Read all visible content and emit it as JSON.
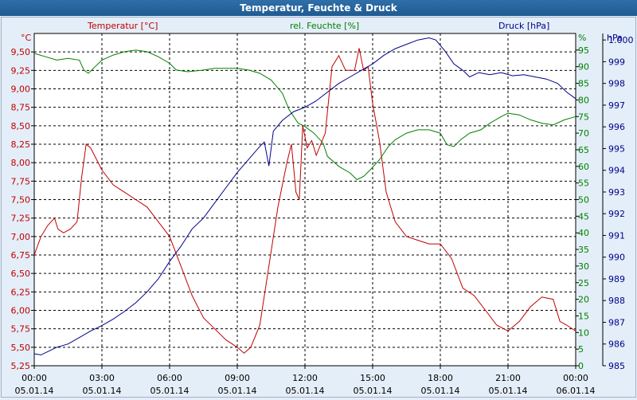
{
  "window": {
    "title": "Temperatur, Feuchte & Druck"
  },
  "chart_data": {
    "type": "line",
    "grid": true,
    "x_axis": {
      "ticks": [
        {
          "time": "00:00",
          "date": "05.01.14"
        },
        {
          "time": "03:00",
          "date": "05.01.14"
        },
        {
          "time": "06:00",
          "date": "05.01.14"
        },
        {
          "time": "09:00",
          "date": "05.01.14"
        },
        {
          "time": "12:00",
          "date": "05.01.14"
        },
        {
          "time": "15:00",
          "date": "05.01.14"
        },
        {
          "time": "18:00",
          "date": "05.01.14"
        },
        {
          "time": "21:00",
          "date": "05.01.14"
        },
        {
          "time": "00:00",
          "date": "06.01.14"
        }
      ],
      "range_hours": [
        0,
        24
      ]
    },
    "y_left": {
      "label": "Temperatur [°C]",
      "unit": "°C",
      "range": [
        5.25,
        9.75
      ],
      "ticks": [
        "5,25",
        "5,50",
        "5,75",
        "6,00",
        "6,25",
        "6,50",
        "6,75",
        "7,00",
        "7,25",
        "7,50",
        "7,75",
        "8,00",
        "8,25",
        "8,50",
        "8,75",
        "9,00",
        "9,25",
        "9,50"
      ],
      "color": "#c00000"
    },
    "y_middle": {
      "label": "rel. Feuchte [%]",
      "unit": "%",
      "range": [
        0,
        100
      ],
      "ticks": [
        "0",
        "5",
        "10",
        "15",
        "20",
        "25",
        "30",
        "35",
        "40",
        "45",
        "50",
        "55",
        "60",
        "65",
        "70",
        "75",
        "80",
        "85",
        "90",
        "95"
      ],
      "color": "#008000"
    },
    "y_right": {
      "label": "Druck [hPa]",
      "unit": "hPa",
      "range": [
        985,
        1000.3
      ],
      "ticks": [
        "985",
        "986",
        "987",
        "988",
        "989",
        "990",
        "991",
        "992",
        "993",
        "994",
        "995",
        "996",
        "997",
        "998",
        "999",
        "1.000"
      ],
      "color": "#00008b"
    },
    "series": [
      {
        "name": "Temperatur [°C]",
        "axis": "left",
        "color": "#c00000",
        "points": [
          [
            0.0,
            6.75
          ],
          [
            0.3,
            7.0
          ],
          [
            0.6,
            7.15
          ],
          [
            0.9,
            7.25
          ],
          [
            1.05,
            7.1
          ],
          [
            1.3,
            7.05
          ],
          [
            1.6,
            7.1
          ],
          [
            1.9,
            7.2
          ],
          [
            2.1,
            7.8
          ],
          [
            2.3,
            8.25
          ],
          [
            2.5,
            8.2
          ],
          [
            3.0,
            7.9
          ],
          [
            3.5,
            7.7
          ],
          [
            4.0,
            7.6
          ],
          [
            4.5,
            7.5
          ],
          [
            5.0,
            7.4
          ],
          [
            5.5,
            7.2
          ],
          [
            6.0,
            7.0
          ],
          [
            6.5,
            6.6
          ],
          [
            7.0,
            6.2
          ],
          [
            7.5,
            5.9
          ],
          [
            8.0,
            5.75
          ],
          [
            8.5,
            5.6
          ],
          [
            9.0,
            5.5
          ],
          [
            9.3,
            5.42
          ],
          [
            9.6,
            5.5
          ],
          [
            10.0,
            5.8
          ],
          [
            10.4,
            6.6
          ],
          [
            10.8,
            7.4
          ],
          [
            11.2,
            8.0
          ],
          [
            11.4,
            8.25
          ],
          [
            11.6,
            7.6
          ],
          [
            11.75,
            7.5
          ],
          [
            11.9,
            8.5
          ],
          [
            12.1,
            8.2
          ],
          [
            12.3,
            8.3
          ],
          [
            12.5,
            8.1
          ],
          [
            12.7,
            8.25
          ],
          [
            12.9,
            8.4
          ],
          [
            13.2,
            9.3
          ],
          [
            13.5,
            9.45
          ],
          [
            13.8,
            9.25
          ],
          [
            14.2,
            9.25
          ],
          [
            14.4,
            9.55
          ],
          [
            14.6,
            9.25
          ],
          [
            14.8,
            9.3
          ],
          [
            15.0,
            8.8
          ],
          [
            15.3,
            8.3
          ],
          [
            15.6,
            7.6
          ],
          [
            16.0,
            7.2
          ],
          [
            16.5,
            7.0
          ],
          [
            17.0,
            6.95
          ],
          [
            17.5,
            6.9
          ],
          [
            18.0,
            6.9
          ],
          [
            18.5,
            6.7
          ],
          [
            19.0,
            6.3
          ],
          [
            19.5,
            6.2
          ],
          [
            20.0,
            6.0
          ],
          [
            20.5,
            5.8
          ],
          [
            21.0,
            5.72
          ],
          [
            21.5,
            5.85
          ],
          [
            22.0,
            6.05
          ],
          [
            22.5,
            6.18
          ],
          [
            23.0,
            6.15
          ],
          [
            23.3,
            5.85
          ],
          [
            23.6,
            5.8
          ],
          [
            24.0,
            5.72
          ]
        ]
      },
      {
        "name": "rel. Feuchte [%]",
        "axis": "middle",
        "color": "#008000",
        "points": [
          [
            0.0,
            94
          ],
          [
            0.5,
            93
          ],
          [
            1.0,
            92
          ],
          [
            1.5,
            92.5
          ],
          [
            2.0,
            92
          ],
          [
            2.2,
            89
          ],
          [
            2.4,
            88
          ],
          [
            2.7,
            90
          ],
          [
            3.0,
            92
          ],
          [
            3.5,
            93.5
          ],
          [
            4.0,
            94.5
          ],
          [
            4.5,
            95
          ],
          [
            5.0,
            94.5
          ],
          [
            5.5,
            93
          ],
          [
            6.0,
            91
          ],
          [
            6.3,
            89
          ],
          [
            6.8,
            88.5
          ],
          [
            7.5,
            89
          ],
          [
            8.0,
            89.5
          ],
          [
            9.0,
            89.5
          ],
          [
            9.5,
            89
          ],
          [
            10.0,
            88
          ],
          [
            10.5,
            86
          ],
          [
            11.0,
            82
          ],
          [
            11.3,
            77
          ],
          [
            11.7,
            73
          ],
          [
            12.0,
            72
          ],
          [
            12.4,
            70
          ],
          [
            12.8,
            67
          ],
          [
            13.0,
            63
          ],
          [
            13.5,
            60
          ],
          [
            14.0,
            58
          ],
          [
            14.3,
            56
          ],
          [
            14.6,
            57
          ],
          [
            14.9,
            59
          ],
          [
            15.3,
            62
          ],
          [
            15.7,
            66
          ],
          [
            16.0,
            68
          ],
          [
            16.5,
            70
          ],
          [
            17.0,
            71
          ],
          [
            17.5,
            71
          ],
          [
            18.0,
            70
          ],
          [
            18.3,
            66.5
          ],
          [
            18.6,
            66
          ],
          [
            18.9,
            68
          ],
          [
            19.3,
            70
          ],
          [
            19.8,
            71
          ],
          [
            20.2,
            73
          ],
          [
            20.7,
            75
          ],
          [
            21.0,
            76
          ],
          [
            21.5,
            75.5
          ],
          [
            22.0,
            74
          ],
          [
            22.5,
            73
          ],
          [
            23.0,
            72.5
          ],
          [
            23.5,
            74
          ],
          [
            24.0,
            75
          ]
        ]
      },
      {
        "name": "Druck [hPa]",
        "axis": "right",
        "color": "#00008b",
        "points": [
          [
            0.0,
            985.55
          ],
          [
            0.3,
            985.5
          ],
          [
            0.7,
            985.7
          ],
          [
            1.0,
            985.85
          ],
          [
            1.5,
            986.0
          ],
          [
            2.0,
            986.3
          ],
          [
            2.5,
            986.6
          ],
          [
            3.0,
            986.85
          ],
          [
            3.5,
            987.15
          ],
          [
            4.0,
            987.5
          ],
          [
            4.5,
            987.9
          ],
          [
            5.0,
            988.4
          ],
          [
            5.5,
            989.0
          ],
          [
            6.0,
            989.8
          ],
          [
            6.5,
            990.5
          ],
          [
            7.0,
            991.3
          ],
          [
            7.5,
            991.8
          ],
          [
            8.0,
            992.5
          ],
          [
            8.5,
            993.2
          ],
          [
            9.0,
            993.9
          ],
          [
            9.5,
            994.5
          ],
          [
            10.0,
            995.1
          ],
          [
            10.2,
            995.3
          ],
          [
            10.4,
            994.2
          ],
          [
            10.6,
            995.8
          ],
          [
            11.0,
            996.3
          ],
          [
            11.5,
            996.7
          ],
          [
            12.0,
            996.9
          ],
          [
            12.5,
            997.2
          ],
          [
            13.0,
            997.6
          ],
          [
            13.5,
            998.0
          ],
          [
            14.0,
            998.3
          ],
          [
            14.5,
            998.6
          ],
          [
            15.0,
            998.9
          ],
          [
            15.5,
            999.3
          ],
          [
            16.0,
            999.6
          ],
          [
            16.5,
            999.8
          ],
          [
            17.0,
            1000.0
          ],
          [
            17.5,
            1000.1
          ],
          [
            17.8,
            1000.0
          ],
          [
            18.2,
            999.5
          ],
          [
            18.6,
            998.9
          ],
          [
            19.0,
            998.6
          ],
          [
            19.3,
            998.3
          ],
          [
            19.7,
            998.5
          ],
          [
            20.2,
            998.4
          ],
          [
            20.7,
            998.5
          ],
          [
            21.2,
            998.35
          ],
          [
            21.7,
            998.4
          ],
          [
            22.2,
            998.3
          ],
          [
            22.7,
            998.2
          ],
          [
            23.2,
            998.0
          ],
          [
            23.6,
            997.6
          ],
          [
            24.0,
            997.3
          ]
        ]
      }
    ]
  }
}
